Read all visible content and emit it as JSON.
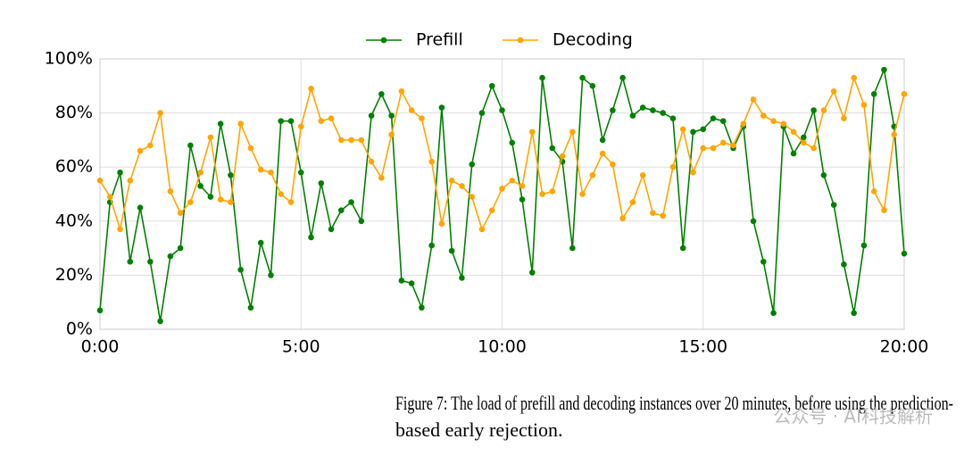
{
  "chart_data": {
    "type": "line",
    "legend": [
      "Prefill",
      "Decoding"
    ],
    "x": [
      0,
      0.25,
      0.5,
      0.75,
      1,
      1.25,
      1.5,
      1.75,
      2,
      2.25,
      2.5,
      2.75,
      3,
      3.25,
      3.5,
      3.75,
      4,
      4.25,
      4.5,
      4.75,
      5,
      5.25,
      5.5,
      5.75,
      6,
      6.25,
      6.5,
      6.75,
      7,
      7.25,
      7.5,
      7.75,
      8,
      8.25,
      8.5,
      8.75,
      9,
      9.25,
      9.5,
      9.75,
      10,
      10.25,
      10.5,
      10.75,
      11,
      11.25,
      11.5,
      11.75,
      12,
      12.25,
      12.5,
      12.75,
      13,
      13.25,
      13.5,
      13.75,
      14,
      14.25,
      14.5,
      14.75,
      15,
      15.25,
      15.5,
      15.75,
      16,
      16.25,
      16.5,
      16.75,
      17,
      17.25,
      17.5,
      17.75,
      18,
      18.25,
      18.5,
      18.75,
      19,
      19.25,
      19.5,
      19.75,
      20
    ],
    "series": [
      {
        "name": "Prefill",
        "color": "#008000",
        "values": [
          7,
          47,
          58,
          25,
          45,
          25,
          3,
          27,
          30,
          68,
          53,
          49,
          76,
          57,
          22,
          8,
          32,
          20,
          77,
          77,
          58,
          34,
          54,
          37,
          44,
          47,
          40,
          79,
          87,
          79,
          18,
          17,
          8,
          31,
          82,
          29,
          19,
          61,
          80,
          90,
          81,
          69,
          48,
          21,
          93,
          67,
          62,
          30,
          93,
          90,
          70,
          81,
          93,
          79,
          82,
          81,
          80,
          78,
          30,
          73,
          74,
          78,
          77,
          67,
          75,
          40,
          25,
          6,
          75,
          65,
          71,
          81,
          57,
          46,
          24,
          6,
          31,
          87,
          96,
          75,
          28
        ]
      },
      {
        "name": "Decoding",
        "color": "#ffa500",
        "values": [
          55,
          49,
          37,
          55,
          66,
          68,
          80,
          51,
          43,
          47,
          58,
          71,
          48,
          47,
          76,
          67,
          59,
          58,
          50,
          47,
          75,
          89,
          77,
          78,
          70,
          70,
          70,
          62,
          56,
          72,
          88,
          81,
          78,
          62,
          39,
          55,
          53,
          49,
          37,
          44,
          52,
          55,
          53,
          73,
          50,
          51,
          64,
          73,
          50,
          57,
          65,
          61,
          41,
          47,
          57,
          43,
          42,
          60,
          74,
          58,
          67,
          67,
          69,
          68,
          76,
          85,
          79,
          77,
          76,
          73,
          69,
          67,
          81,
          88,
          78,
          93,
          83,
          51,
          44,
          72,
          87
        ]
      }
    ],
    "xlim": [
      0,
      20
    ],
    "xticks": [
      {
        "value": 0,
        "label": "0:00"
      },
      {
        "value": 5,
        "label": "5:00"
      },
      {
        "value": 10,
        "label": "10:00"
      },
      {
        "value": 15,
        "label": "15:00"
      },
      {
        "value": 20,
        "label": "20:00"
      }
    ],
    "ylim": [
      0,
      100
    ],
    "yticks": [
      {
        "value": 0,
        "label": "0%"
      },
      {
        "value": 20,
        "label": "20%"
      },
      {
        "value": 40,
        "label": "40%"
      },
      {
        "value": 60,
        "label": "60%"
      },
      {
        "value": 80,
        "label": "80%"
      },
      {
        "value": 100,
        "label": "100%"
      }
    ],
    "grid": true,
    "caption": [
      "Figure 7: The load of prefill and decoding instances over 20 minutes, before using the prediction-",
      "based early rejection."
    ],
    "watermark": "公众号 · AI科技解析"
  }
}
